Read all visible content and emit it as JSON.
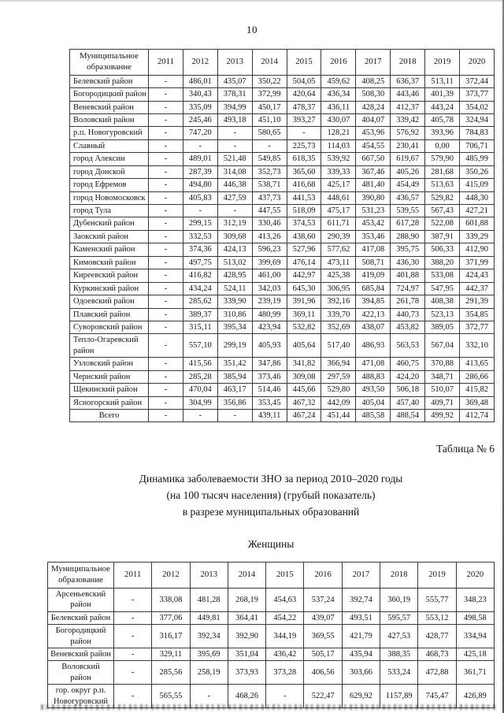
{
  "page": {
    "number": "10",
    "table_caption": "Таблица № 6",
    "title_lines": [
      "Динамика заболеваемости ЗНО за период 2010–2020 годы",
      "(на 100 тысяч населения) (грубый показатель)",
      "в разрезе муниципальных образований"
    ],
    "subtitle": "Женщины"
  },
  "table1": {
    "header": [
      "Муниципальное образование",
      "2011",
      "2012",
      "2013",
      "2014",
      "2015",
      "2016",
      "2017",
      "2018",
      "2019",
      "2020"
    ],
    "rows": [
      {
        "name": "Белевский район",
        "values": [
          "-",
          "486,01",
          "435,07",
          "350,22",
          "504,05",
          "459,62",
          "408,25",
          "636,37",
          "513,11",
          "372,44"
        ]
      },
      {
        "name": "Богородицкий район",
        "values": [
          "-",
          "340,43",
          "378,31",
          "372,99",
          "420,64",
          "436,34",
          "508,30",
          "443,46",
          "401,39",
          "373,77"
        ]
      },
      {
        "name": "Веневский район",
        "values": [
          "-",
          "335,09",
          "394,99",
          "450,17",
          "478,37",
          "436,11",
          "428,24",
          "412,37",
          "443,24",
          "354,02"
        ]
      },
      {
        "name": "Воловский район",
        "values": [
          "-",
          "245,46",
          "493,18",
          "451,10",
          "393,27",
          "430,07",
          "404,07",
          "339,42",
          "405,78",
          "324,94"
        ]
      },
      {
        "name": "р.п. Новогуровский",
        "values": [
          "-",
          "747,20",
          "-",
          "580,65",
          "-",
          "128,21",
          "453,96",
          "576,92",
          "393,96",
          "784,83"
        ]
      },
      {
        "name": "Славный",
        "values": [
          "-",
          "-",
          "-",
          "-",
          "225,73",
          "114,03",
          "454,55",
          "230,41",
          "0,00",
          "706,71"
        ]
      },
      {
        "name": "город Алексин",
        "values": [
          "-",
          "489,01",
          "521,48",
          "549,85",
          "618,35",
          "539,92",
          "667,50",
          "619,67",
          "579,90",
          "485,99"
        ]
      },
      {
        "name": "город Донской",
        "values": [
          "-",
          "287,39",
          "314,08",
          "352,73",
          "365,60",
          "339,33",
          "367,46",
          "405,26",
          "281,68",
          "350,26"
        ]
      },
      {
        "name": "город Ефремов",
        "values": [
          "-",
          "494,80",
          "446,38",
          "538,71",
          "416,68",
          "425,17",
          "481,40",
          "454,49",
          "513,63",
          "415,09"
        ]
      },
      {
        "name": "город Новомосковск",
        "values": [
          "-",
          "405,83",
          "427,59",
          "437,73",
          "441,53",
          "448,61",
          "390,80",
          "436,57",
          "529,82",
          "448,30"
        ]
      },
      {
        "name": "город Тула",
        "values": [
          "-",
          "-",
          "-",
          "447,55",
          "518,09",
          "475,17",
          "531,23",
          "539,55",
          "567,43",
          "427,21"
        ]
      },
      {
        "name": "Дубенский район",
        "values": [
          "-",
          "299,15",
          "312,19",
          "330,46",
          "374,53",
          "611,71",
          "453,42",
          "617,28",
          "522,08",
          "601,88"
        ]
      },
      {
        "name": "Заокский район",
        "values": [
          "-",
          "332,53",
          "309,68",
          "413,26",
          "438,60",
          "290,39",
          "353,46",
          "288,90",
          "387,91",
          "339,29"
        ]
      },
      {
        "name": "Каменский район",
        "values": [
          "-",
          "374,36",
          "424,13",
          "596,23",
          "527,96",
          "577,62",
          "417,08",
          "395,75",
          "506,33",
          "412,90"
        ]
      },
      {
        "name": "Кимовский район",
        "values": [
          "-",
          "497,75",
          "513,02",
          "399,69",
          "476,14",
          "473,11",
          "508,71",
          "436,30",
          "388,20",
          "371,99"
        ]
      },
      {
        "name": "Киреевский район",
        "values": [
          "-",
          "416,82",
          "428,95",
          "461,00",
          "442,97",
          "425,38",
          "419,09",
          "401,88",
          "533,08",
          "424,43"
        ]
      },
      {
        "name": "Куркинский район",
        "values": [
          "-",
          "434,24",
          "524,11",
          "342,03",
          "645,30",
          "306,95",
          "685,84",
          "724,97",
          "547,95",
          "442,37"
        ]
      },
      {
        "name": "Одоевский район",
        "values": [
          "-",
          "285,62",
          "339,90",
          "239,19",
          "391,96",
          "392,16",
          "394,85",
          "261,78",
          "408,38",
          "291,39"
        ]
      },
      {
        "name": "Плавский район",
        "values": [
          "-",
          "389,37",
          "310,86",
          "480,99",
          "369,11",
          "339,70",
          "422,13",
          "440,73",
          "523,13",
          "354,85"
        ]
      },
      {
        "name": "Суворовский район",
        "values": [
          "-",
          "315,11",
          "395,34",
          "423,94",
          "532,82",
          "352,69",
          "438,07",
          "453,82",
          "389,05",
          "372,77"
        ]
      },
      {
        "name": "Тепло-Огаревский район",
        "values": [
          "-",
          "557,10",
          "299,19",
          "405,93",
          "405,64",
          "517,40",
          "486,93",
          "563,53",
          "567,04",
          "332,10"
        ]
      },
      {
        "name": "Узловский район",
        "values": [
          "-",
          "415,56",
          "351,42",
          "347,86",
          "341,82",
          "366,94",
          "471,08",
          "460,75",
          "370,88",
          "413,65"
        ]
      },
      {
        "name": "Чернский район",
        "values": [
          "-",
          "285,28",
          "385,94",
          "373,46",
          "309,08",
          "297,59",
          "488,83",
          "424,20",
          "348,71",
          "286,66"
        ]
      },
      {
        "name": "Щекинский район",
        "values": [
          "-",
          "470,04",
          "463,17",
          "514,46",
          "445,66",
          "529,80",
          "493,50",
          "506,18",
          "510,07",
          "415,82"
        ]
      },
      {
        "name": "Ясногорский район",
        "values": [
          "-",
          "304,99",
          "356,86",
          "353,45",
          "467,32",
          "442,09",
          "405,04",
          "457,40",
          "409,71",
          "369,48"
        ]
      },
      {
        "name": "Всего",
        "values": [
          "-",
          "-",
          "-",
          "439,11",
          "467,24",
          "451,44",
          "485,58",
          "488,54",
          "499,92",
          "412,74"
        ]
      }
    ]
  },
  "table2": {
    "header": [
      "Муниципальное образование",
      "2011",
      "2012",
      "2013",
      "2014",
      "2015",
      "2016",
      "2017",
      "2018",
      "2019",
      "2020"
    ],
    "rows": [
      {
        "name": "Арсеньевский район",
        "values": [
          "-",
          "338,08",
          "481,28",
          "268,19",
          "454,63",
          "537,24",
          "392,74",
          "360,19",
          "555,77",
          "348,23"
        ]
      },
      {
        "name": "Белевский район",
        "values": [
          "-",
          "377,06",
          "449,81",
          "364,41",
          "454,22",
          "439,07",
          "493,51",
          "595,57",
          "553,12",
          "498,58"
        ]
      },
      {
        "name": "Богородицкий район",
        "values": [
          "-",
          "316,17",
          "392,34",
          "392,90",
          "344,19",
          "369,55",
          "421,79",
          "427,53",
          "428,77",
          "334,94"
        ]
      },
      {
        "name": "Веневский район",
        "values": [
          "-",
          "329,11",
          "395,69",
          "351,04",
          "436,42",
          "505,17",
          "435,94",
          "388,35",
          "468,73",
          "425,18"
        ]
      },
      {
        "name": "Воловский район",
        "values": [
          "-",
          "285,56",
          "258,19",
          "373,93",
          "373,28",
          "406,56",
          "303,66",
          "533,24",
          "472,88",
          "361,71"
        ]
      },
      {
        "name": "гор. округ р.п. Новогуровский",
        "values": [
          "-",
          "565,55",
          "-",
          "468,26",
          "-",
          "522,47",
          "629,92",
          "1157,89",
          "745,47",
          "426,89"
        ]
      }
    ]
  }
}
